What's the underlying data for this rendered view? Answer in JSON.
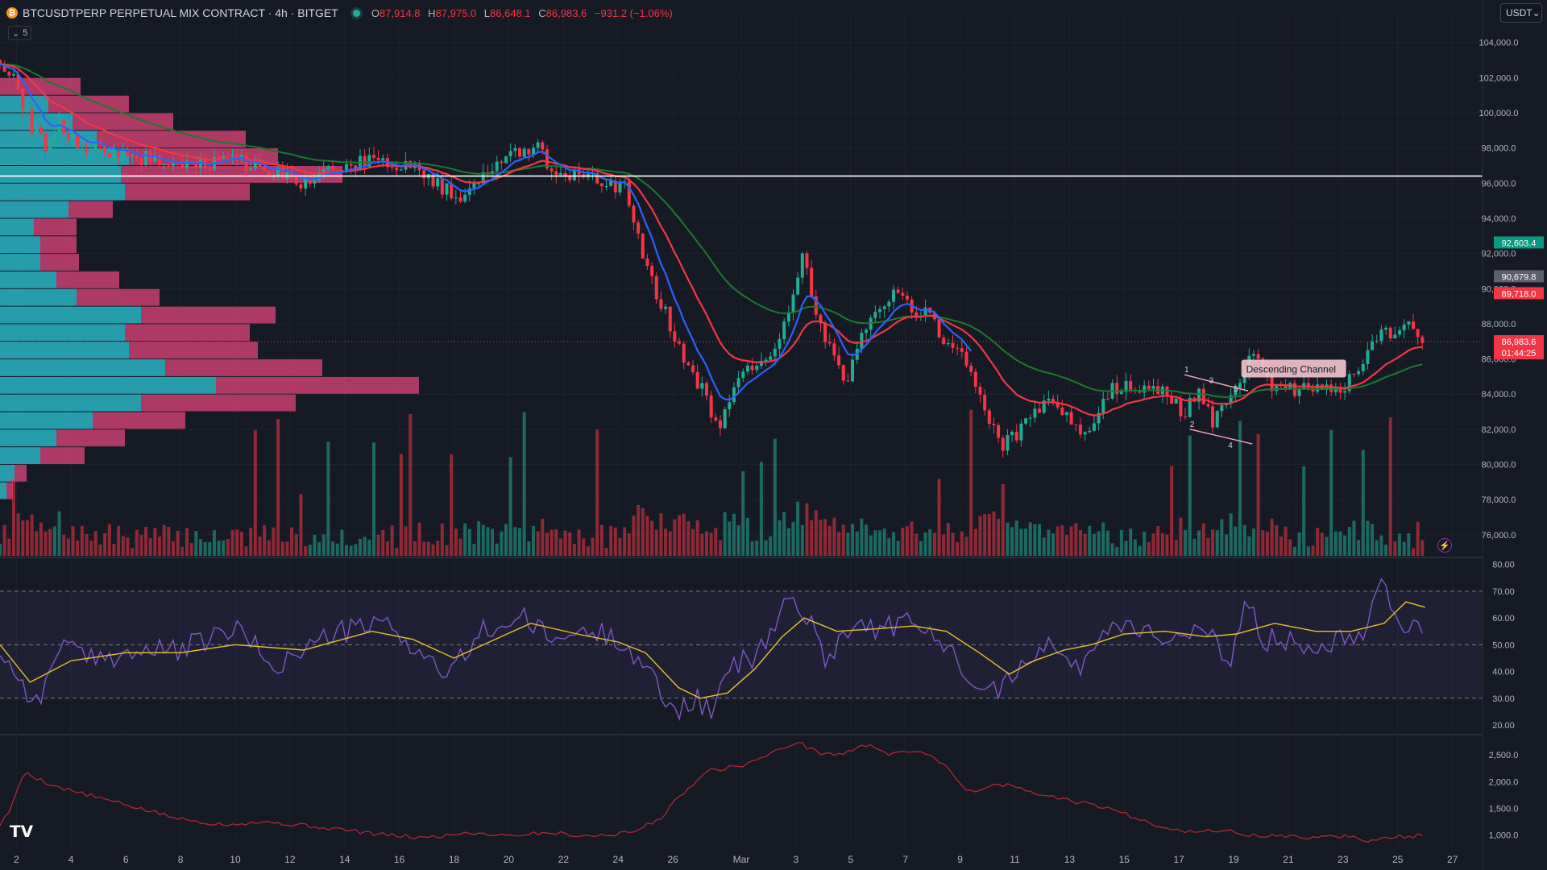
{
  "header": {
    "symbol": "BTCUSDTPERP PERPETUAL MIX CONTRACT · 4h · BITGET",
    "coin_icon": "bitcoin-icon",
    "open_label": "O",
    "open": "87,914.8",
    "high_label": "H",
    "high": "87,975.0",
    "low_label": "L",
    "low": "86,648.1",
    "close_label": "C",
    "close": "86,983.6",
    "change": "−931.2 (−1.06%)",
    "indicator_count": "5"
  },
  "currency": "USDT",
  "colors": {
    "background": "#161a25",
    "up": "#22ab94",
    "down": "#f23645",
    "ema_fast": "#2962ff",
    "ema_mid": "#f23645",
    "ema_slow": "#1b7a2f",
    "rsi": "#7e57c2",
    "rsi_ma": "#e6c229",
    "vp_up": "#2ab5c4",
    "vp_down": "#e0457b"
  },
  "chart_data": [
    {
      "type": "candlestick",
      "title": "",
      "y_ticks": [
        104000,
        102000,
        100000,
        98000,
        96000,
        94000,
        92000,
        90000,
        88000,
        86000,
        84000,
        82000,
        80000,
        78000,
        76000
      ],
      "y_tick_labels": [
        "104,000.0",
        "102,000.0",
        "100,000.0",
        "98,000.0",
        "96,000.0",
        "94,000.0",
        "92,000.0",
        "90,000.0",
        "88,000.0",
        "86,000.0",
        "84,000.0",
        "82,000.0",
        "80,000.0",
        "78,000.0",
        "76,000.0"
      ],
      "ylim": [
        74800,
        105500
      ],
      "x_ticks": [
        {
          "day": 2,
          "label": "2"
        },
        {
          "day": 4,
          "label": "4"
        },
        {
          "day": 6,
          "label": "6"
        },
        {
          "day": 8,
          "label": "8"
        },
        {
          "day": 10,
          "label": "10"
        },
        {
          "day": 12,
          "label": "12"
        },
        {
          "day": 14,
          "label": "14"
        },
        {
          "day": 16,
          "label": "16"
        },
        {
          "day": 18,
          "label": "18"
        },
        {
          "day": 20,
          "label": "20"
        },
        {
          "day": 22,
          "label": "22"
        },
        {
          "day": 24,
          "label": "24"
        },
        {
          "day": 26,
          "label": "26"
        },
        {
          "day": 28.5,
          "label": "Mar"
        },
        {
          "day": 30.5,
          "label": "3"
        },
        {
          "day": 32.5,
          "label": "5"
        },
        {
          "day": 34.5,
          "label": "7"
        },
        {
          "day": 36.5,
          "label": "9"
        },
        {
          "day": 38.5,
          "label": "11"
        },
        {
          "day": 40.5,
          "label": "13"
        },
        {
          "day": 42.5,
          "label": "15"
        },
        {
          "day": 44.5,
          "label": "17"
        },
        {
          "day": 46.5,
          "label": "19"
        },
        {
          "day": 48.5,
          "label": "21"
        },
        {
          "day": 50.5,
          "label": "23"
        },
        {
          "day": 52.5,
          "label": "25"
        },
        {
          "day": 54.5,
          "label": "27"
        }
      ],
      "xlim": [
        1.4,
        55.6
      ],
      "key_points": [
        [
          1.4,
          103000
        ],
        [
          2.0,
          101500
        ],
        [
          2.6,
          99000
        ],
        [
          3.2,
          98000
        ],
        [
          3.6,
          99500
        ],
        [
          4.2,
          98200
        ],
        [
          5.5,
          97800
        ],
        [
          7.0,
          97300
        ],
        [
          8.5,
          96800
        ],
        [
          9.5,
          97400
        ],
        [
          10.5,
          97100
        ],
        [
          11.5,
          96500
        ],
        [
          12.5,
          96000
        ],
        [
          13.5,
          96700
        ],
        [
          15.0,
          97300
        ],
        [
          16.5,
          96900
        ],
        [
          17.5,
          95800
        ],
        [
          18.2,
          95300
        ],
        [
          19.0,
          96400
        ],
        [
          20.0,
          97600
        ],
        [
          21.0,
          98200
        ],
        [
          21.6,
          96600
        ],
        [
          22.6,
          96300
        ],
        [
          23.6,
          96100
        ],
        [
          24.3,
          95600
        ],
        [
          25.0,
          91200
        ],
        [
          25.6,
          89000
        ],
        [
          26.3,
          86500
        ],
        [
          27.2,
          83800
        ],
        [
          27.7,
          81800
        ],
        [
          28.2,
          84200
        ],
        [
          28.8,
          85600
        ],
        [
          29.5,
          86000
        ],
        [
          30.2,
          88500
        ],
        [
          30.7,
          92000
        ],
        [
          31.2,
          89000
        ],
        [
          31.8,
          86200
        ],
        [
          32.3,
          84500
        ],
        [
          32.9,
          87200
        ],
        [
          33.5,
          88700
        ],
        [
          34.2,
          90200
        ],
        [
          34.8,
          88500
        ],
        [
          35.4,
          88600
        ],
        [
          36.0,
          86600
        ],
        [
          36.6,
          86200
        ],
        [
          37.2,
          84300
        ],
        [
          37.6,
          82300
        ],
        [
          38.0,
          81000
        ],
        [
          38.5,
          81600
        ],
        [
          39.0,
          83000
        ],
        [
          39.5,
          83300
        ],
        [
          40.0,
          83500
        ],
        [
          40.6,
          82400
        ],
        [
          41.0,
          81400
        ],
        [
          41.5,
          83000
        ],
        [
          42.0,
          84200
        ],
        [
          42.6,
          84300
        ],
        [
          43.3,
          84500
        ],
        [
          44.0,
          84200
        ],
        [
          44.6,
          82900
        ],
        [
          45.2,
          84000
        ],
        [
          45.8,
          82300
        ],
        [
          46.4,
          84200
        ],
        [
          46.9,
          85400
        ],
        [
          47.3,
          86400
        ],
        [
          47.8,
          84500
        ],
        [
          48.5,
          84200
        ],
        [
          49.2,
          84300
        ],
        [
          49.8,
          84100
        ],
        [
          50.5,
          84500
        ],
        [
          51.1,
          85300
        ],
        [
          51.6,
          87200
        ],
        [
          52.0,
          87700
        ],
        [
          52.5,
          87400
        ],
        [
          53.0,
          87900
        ],
        [
          53.5,
          86983.6
        ]
      ],
      "horizontal_line": 96400,
      "last_price": 86983.6,
      "price_labels": [
        {
          "value": 92603.4,
          "label": "92,603.4",
          "color": "#089981"
        },
        {
          "value": 90679.8,
          "label": "90,679.8",
          "color": "#5d606b"
        },
        {
          "value": 89718.0,
          "label": "89,718.0",
          "color": "#f23645"
        },
        {
          "value": 86983.6,
          "label": "86,983.6",
          "color": "#f23645"
        }
      ],
      "countdown": "01:44:25",
      "annotation": "Descending Channel",
      "annotation_at": [
        46.9,
        85130
      ],
      "pattern_points": [
        {
          "label": "1",
          "day": 44.7,
          "price": 85100
        },
        {
          "label": "2",
          "day": 44.9,
          "price": 82000
        },
        {
          "label": "3",
          "day": 45.6,
          "price": 84500
        },
        {
          "label": "4",
          "day": 46.3,
          "price": 80800
        },
        {
          "label": "5",
          "day": 46.5,
          "price": 84000
        }
      ],
      "volume_profile": [
        {
          "price": 101500,
          "up": 0,
          "down": 100
        },
        {
          "price": 100500,
          "up": 60,
          "down": 160
        },
        {
          "price": 99500,
          "up": 90,
          "down": 215
        },
        {
          "price": 98500,
          "up": 120,
          "down": 305
        },
        {
          "price": 97500,
          "up": 160,
          "down": 345
        },
        {
          "price": 96500,
          "up": 150,
          "down": 425
        },
        {
          "price": 95500,
          "up": 155,
          "down": 310
        },
        {
          "price": 94500,
          "up": 85,
          "down": 140
        },
        {
          "price": 93500,
          "up": 42,
          "down": 95
        },
        {
          "price": 92500,
          "up": 50,
          "down": 95
        },
        {
          "price": 91500,
          "up": 50,
          "down": 98
        },
        {
          "price": 90500,
          "up": 70,
          "down": 148
        },
        {
          "price": 89500,
          "up": 95,
          "down": 198
        },
        {
          "price": 88500,
          "up": 175,
          "down": 342
        },
        {
          "price": 87500,
          "up": 155,
          "down": 310
        },
        {
          "price": 86500,
          "up": 160,
          "down": 320
        },
        {
          "price": 85500,
          "up": 205,
          "down": 400
        },
        {
          "price": 84500,
          "up": 268,
          "down": 520
        },
        {
          "price": 83500,
          "up": 175,
          "down": 367
        },
        {
          "price": 82500,
          "up": 115,
          "down": 230
        },
        {
          "price": 81500,
          "up": 70,
          "down": 155
        },
        {
          "price": 80500,
          "up": 50,
          "down": 105
        },
        {
          "price": 79500,
          "up": 18,
          "down": 33
        },
        {
          "price": 78500,
          "up": 8,
          "down": 16
        }
      ]
    },
    {
      "type": "line",
      "title": "",
      "indicator": "RSI",
      "y_ticks": [
        80,
        70,
        60,
        50,
        40,
        30,
        20
      ],
      "y_tick_labels": [
        "80.00",
        "70.00",
        "60.00",
        "50.00",
        "40.00",
        "30.00",
        "20.00"
      ],
      "ylim": [
        17,
        82
      ],
      "band": [
        30,
        70
      ],
      "key_points": [
        [
          1.4,
          48
        ],
        [
          2.2,
          36
        ],
        [
          2.8,
          27
        ],
        [
          3.6,
          52
        ],
        [
          4.5,
          44
        ],
        [
          6.0,
          47
        ],
        [
          8.0,
          48
        ],
        [
          10.0,
          56
        ],
        [
          11.5,
          42
        ],
        [
          13.5,
          54
        ],
        [
          15.5,
          58
        ],
        [
          17.0,
          45
        ],
        [
          17.8,
          38
        ],
        [
          19.0,
          55
        ],
        [
          20.5,
          60
        ],
        [
          21.5,
          52
        ],
        [
          23.0,
          55
        ],
        [
          24.2,
          52
        ],
        [
          25.2,
          38
        ],
        [
          26.0,
          25
        ],
        [
          26.8,
          30
        ],
        [
          27.4,
          25
        ],
        [
          28.2,
          42
        ],
        [
          29.2,
          47
        ],
        [
          30.2,
          68
        ],
        [
          30.8,
          62
        ],
        [
          31.6,
          45
        ],
        [
          32.5,
          58
        ],
        [
          33.5,
          56
        ],
        [
          34.5,
          58
        ],
        [
          35.5,
          54
        ],
        [
          36.6,
          42
        ],
        [
          37.4,
          35
        ],
        [
          38.1,
          33
        ],
        [
          38.8,
          46
        ],
        [
          39.8,
          50
        ],
        [
          40.8,
          40
        ],
        [
          41.6,
          55
        ],
        [
          42.5,
          58
        ],
        [
          43.5,
          55
        ],
        [
          44.5,
          52
        ],
        [
          45.5,
          55
        ],
        [
          46.3,
          42
        ],
        [
          47.0,
          67
        ],
        [
          47.6,
          52
        ],
        [
          48.5,
          52
        ],
        [
          49.5,
          50
        ],
        [
          50.5,
          53
        ],
        [
          51.2,
          55
        ],
        [
          52.0,
          76
        ],
        [
          52.6,
          55
        ],
        [
          53.2,
          62
        ],
        [
          53.5,
          53
        ]
      ],
      "ma_key_points": [
        [
          1.4,
          50
        ],
        [
          2.5,
          36
        ],
        [
          4.0,
          44
        ],
        [
          6.0,
          47
        ],
        [
          8.0,
          47
        ],
        [
          10.0,
          50
        ],
        [
          12.5,
          48
        ],
        [
          15.0,
          55
        ],
        [
          16.5,
          52
        ],
        [
          18.0,
          45
        ],
        [
          19.5,
          52
        ],
        [
          20.8,
          58
        ],
        [
          22.5,
          54
        ],
        [
          24.0,
          51
        ],
        [
          25.0,
          47
        ],
        [
          26.2,
          34
        ],
        [
          27.0,
          30
        ],
        [
          28.0,
          32
        ],
        [
          29.0,
          41
        ],
        [
          30.0,
          53
        ],
        [
          30.8,
          60
        ],
        [
          32.0,
          55
        ],
        [
          33.5,
          56
        ],
        [
          34.8,
          57
        ],
        [
          36.0,
          55
        ],
        [
          37.2,
          47
        ],
        [
          38.3,
          39
        ],
        [
          39.2,
          44
        ],
        [
          40.3,
          48
        ],
        [
          41.3,
          50
        ],
        [
          42.5,
          54
        ],
        [
          44.0,
          55
        ],
        [
          45.5,
          53
        ],
        [
          46.6,
          54
        ],
        [
          48.0,
          58
        ],
        [
          49.5,
          55
        ],
        [
          50.8,
          55
        ],
        [
          52.0,
          58
        ],
        [
          52.8,
          66
        ],
        [
          53.5,
          64
        ]
      ]
    },
    {
      "type": "line",
      "title": "",
      "indicator": "oscillator",
      "y_ticks": [
        2500,
        2000,
        1500,
        1000
      ],
      "y_tick_labels": [
        "2,500.0",
        "2,000.0",
        "1,500.0",
        "1,000.0"
      ],
      "ylim": [
        800,
        2850
      ],
      "key_points": [
        [
          1.4,
          1200
        ],
        [
          1.8,
          1500
        ],
        [
          2.3,
          2200
        ],
        [
          2.8,
          2050
        ],
        [
          3.5,
          1900
        ],
        [
          5.0,
          1700
        ],
        [
          6.5,
          1500
        ],
        [
          8.0,
          1300
        ],
        [
          9.5,
          1200
        ],
        [
          11.0,
          1250
        ],
        [
          12.5,
          1180
        ],
        [
          14.0,
          1100
        ],
        [
          15.5,
          1000
        ],
        [
          17.0,
          950
        ],
        [
          18.5,
          1050
        ],
        [
          20.0,
          1000
        ],
        [
          21.5,
          1050
        ],
        [
          23.0,
          980
        ],
        [
          24.5,
          1050
        ],
        [
          25.5,
          1300
        ],
        [
          26.3,
          1750
        ],
        [
          27.2,
          2200
        ],
        [
          28.5,
          2300
        ],
        [
          29.5,
          2500
        ],
        [
          30.5,
          2750
        ],
        [
          31.3,
          2550
        ],
        [
          32.0,
          2500
        ],
        [
          33.2,
          2700
        ],
        [
          34.0,
          2500
        ],
        [
          35.0,
          2600
        ],
        [
          36.0,
          2300
        ],
        [
          36.8,
          1800
        ],
        [
          37.5,
          1900
        ],
        [
          38.3,
          1950
        ],
        [
          39.0,
          1800
        ],
        [
          40.0,
          1700
        ],
        [
          41.0,
          1600
        ],
        [
          42.0,
          1500
        ],
        [
          43.0,
          1300
        ],
        [
          44.0,
          1150
        ],
        [
          45.0,
          1050
        ],
        [
          46.0,
          1100
        ],
        [
          47.0,
          1000
        ],
        [
          48.0,
          980
        ],
        [
          49.5,
          960
        ],
        [
          50.5,
          980
        ],
        [
          51.5,
          900
        ],
        [
          52.5,
          970
        ],
        [
          53.5,
          990
        ]
      ]
    }
  ]
}
